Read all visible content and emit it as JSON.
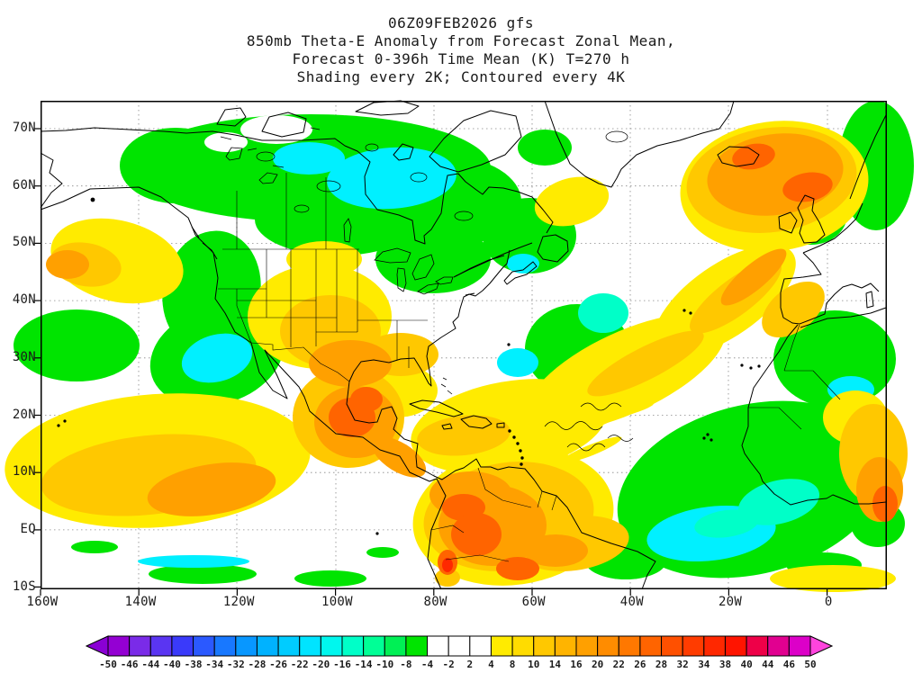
{
  "header": {
    "line1": "06Z09FEB2026 gfs",
    "line2": "850mb Theta-E Anomaly from Forecast Zonal Mean,",
    "line3": "Forecast 0-396h Time Mean (K) T=270 h",
    "line4": "Shading every 2K; Contoured every 4K"
  },
  "axes": {
    "lat_ticks": [
      "70N",
      "60N",
      "50N",
      "40N",
      "30N",
      "20N",
      "10N",
      "EQ",
      "10S"
    ],
    "lon_ticks": [
      "160W",
      "140W",
      "120W",
      "100W",
      "80W",
      "60W",
      "40W",
      "20W",
      "0"
    ]
  },
  "colorbar": {
    "labels": [
      "-50",
      "-46",
      "-44",
      "-40",
      "-38",
      "-34",
      "-32",
      "-28",
      "-26",
      "-22",
      "-20",
      "-16",
      "-14",
      "-10",
      "-8",
      "-4",
      "-2",
      "2",
      "4",
      "8",
      "10",
      "14",
      "16",
      "20",
      "22",
      "26",
      "28",
      "32",
      "34",
      "38",
      "40",
      "44",
      "46",
      "50"
    ],
    "segment_colors": [
      "#9400D3",
      "#7A2BE8",
      "#5A35F2",
      "#3A3AFA",
      "#2B59FF",
      "#1878FF",
      "#0897FF",
      "#00B2FF",
      "#00CCFF",
      "#00E4FF",
      "#00F7EE",
      "#00FFC8",
      "#00FF96",
      "#00F055",
      "#00E400",
      "#FFFFFF",
      "#FFFFFF",
      "#FFFFFF",
      "#FFEB00",
      "#FFDC00",
      "#FFC800",
      "#FFB400",
      "#FFA000",
      "#FF8C00",
      "#FF7800",
      "#FF6400",
      "#FF5000",
      "#FF3C00",
      "#FF2800",
      "#FF1400",
      "#EE0048",
      "#E10090",
      "#DC00C8"
    ],
    "left_arrow_color": "#8A00D4",
    "right_arrow_color": "#FF44DD"
  },
  "chart_data": {
    "type": "heatmap",
    "title": "850mb Theta-E Anomaly from Forecast Zonal Mean, Forecast 0-396h Time Mean (K) T=270 h",
    "model_run": "06Z09FEB2026 gfs",
    "units": "K",
    "shading_interval_K": 2,
    "contour_interval_K": 4,
    "x_axis": {
      "label": "longitude",
      "ticks": [
        "160W",
        "140W",
        "120W",
        "100W",
        "80W",
        "60W",
        "40W",
        "20W",
        "0"
      ],
      "range": [
        "160W",
        "12E"
      ]
    },
    "y_axis": {
      "label": "latitude",
      "ticks": [
        "70N",
        "60N",
        "50N",
        "40N",
        "30N",
        "20N",
        "10N",
        "EQ",
        "10S"
      ],
      "range": [
        "10S",
        "75N"
      ]
    },
    "colorbar_levels": [
      -50,
      -46,
      -44,
      -40,
      -38,
      -34,
      -32,
      -28,
      -26,
      -22,
      -20,
      -16,
      -14,
      -10,
      -8,
      -4,
      -2,
      2,
      4,
      8,
      10,
      14,
      16,
      20,
      22,
      26,
      28,
      32,
      34,
      38,
      40,
      44,
      46,
      50
    ],
    "features": [
      {
        "region": "Canada, Alaska and Arctic North America",
        "sign": "negative",
        "approx_value_K": "-4 to -12",
        "lon": "150W-55W",
        "lat": "45N-75N"
      },
      {
        "region": "Eastern Pacific off California",
        "sign": "negative",
        "approx_value_K": "-4 to -10",
        "lon": "150W-120W",
        "lat": "25N-45N"
      },
      {
        "region": "Subtropical northeast Pacific",
        "sign": "positive",
        "approx_value_K": "+4 to +16",
        "lon": "160W-110W",
        "lat": "0-25N"
      },
      {
        "region": "US Southwest and southern Plains",
        "sign": "positive",
        "approx_value_K": "+4 to +12",
        "lon": "115W-90W",
        "lat": "28N-45N"
      },
      {
        "region": "Mexico and Central America",
        "sign": "positive",
        "approx_value_K": "+8 to +24",
        "lon": "105W-85W",
        "lat": "10N-28N"
      },
      {
        "region": "Northern South America",
        "sign": "positive",
        "approx_value_K": "+8 to +30",
        "lon": "80W-35W",
        "lat": "10S-12N"
      },
      {
        "region": "Caribbean to central Atlantic band curving into NE Atlantic, Iceland and east Greenland",
        "sign": "positive",
        "approx_value_K": "+4 to +20",
        "lon": "80W-10W",
        "lat": "15N-75N"
      },
      {
        "region": "Tropical eastern Atlantic and West Africa",
        "sign": "negative",
        "approx_value_K": "-4 to -14",
        "lon": "45W-10E",
        "lat": "10S-25N"
      },
      {
        "region": "Northwest Africa and Iberia vicinity",
        "sign": "negative",
        "approx_value_K": "-4 to -10",
        "lon": "15W-10E",
        "lat": "25N-45N"
      },
      {
        "region": "Central North Atlantic near Newfoundland",
        "sign": "negative",
        "approx_value_K": "-4 to -10",
        "lon": "55W-35W",
        "lat": "30N-50N"
      }
    ]
  }
}
